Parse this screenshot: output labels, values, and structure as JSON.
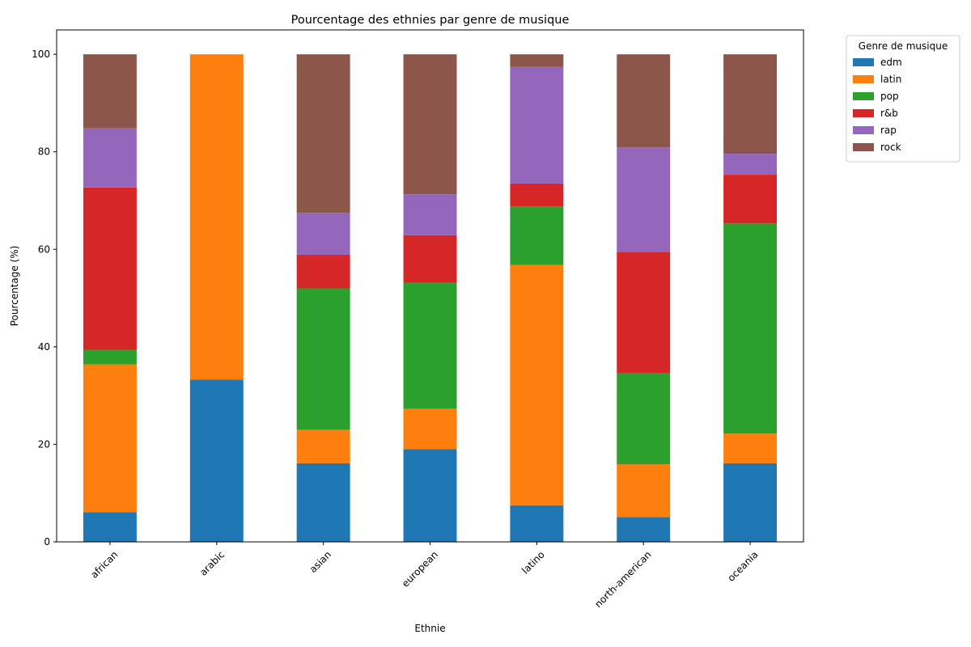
{
  "chart_data": {
    "type": "bar",
    "stacked": true,
    "title": "Pourcentage des ethnies par genre de musique",
    "xlabel": "Ethnie",
    "ylabel": "Pourcentage (%)",
    "ylim": [
      0,
      105
    ],
    "yticks": [
      0,
      20,
      40,
      60,
      80,
      100
    ],
    "grid": false,
    "legend": {
      "title": "Genre de musique",
      "placement": "outside-top-right"
    },
    "categories": [
      "african",
      "arabic",
      "asian",
      "european",
      "latino",
      "north-american",
      "oceania"
    ],
    "series": [
      {
        "name": "edm",
        "color": "#1f77b4",
        "values": [
          6.1,
          33.3,
          16.1,
          19.0,
          7.5,
          5.1,
          16.1
        ]
      },
      {
        "name": "latin",
        "color": "#ff7f0e",
        "values": [
          30.3,
          66.7,
          6.9,
          8.3,
          49.3,
          10.8,
          6.1
        ]
      },
      {
        "name": "pop",
        "color": "#2ca02c",
        "values": [
          3.0,
          0,
          29.0,
          25.8,
          12.0,
          18.7,
          43.1
        ]
      },
      {
        "name": "r&b",
        "color": "#d62728",
        "values": [
          33.3,
          0,
          6.9,
          9.8,
          4.7,
          24.9,
          10.0
        ]
      },
      {
        "name": "rap",
        "color": "#9467bd",
        "values": [
          12.1,
          0,
          8.6,
          8.4,
          23.9,
          21.4,
          4.3
        ]
      },
      {
        "name": "rock",
        "color": "#8c564b",
        "values": [
          15.2,
          0,
          32.5,
          28.7,
          2.6,
          19.1,
          20.4
        ]
      }
    ]
  }
}
